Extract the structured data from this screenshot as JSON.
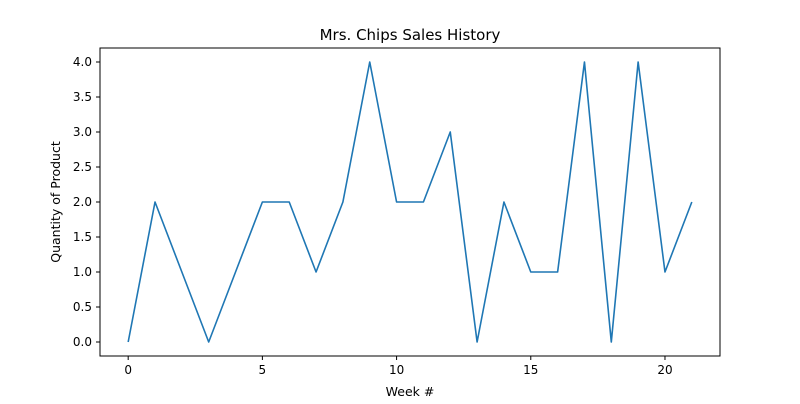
{
  "chart_data": {
    "type": "line",
    "title": "Mrs. Chips Sales History",
    "xlabel": "Week #",
    "ylabel": "Quantity of Product",
    "xlim": [
      -1.05,
      22.05
    ],
    "ylim": [
      -0.2,
      4.2
    ],
    "xticks": [
      0,
      5,
      10,
      15,
      20
    ],
    "yticks": [
      0.0,
      0.5,
      1.0,
      1.5,
      2.0,
      2.5,
      3.0,
      3.5,
      4.0
    ],
    "ytick_labels": [
      "0.0",
      "0.5",
      "1.0",
      "1.5",
      "2.0",
      "2.5",
      "3.0",
      "3.5",
      "4.0"
    ],
    "grid": false,
    "legend": "none",
    "series": [
      {
        "color": "#1f77b4",
        "x": [
          0,
          1,
          2,
          3,
          4,
          5,
          6,
          7,
          8,
          9,
          10,
          11,
          12,
          13,
          14,
          15,
          16,
          17,
          18,
          19,
          20,
          21
        ],
        "y": [
          0,
          2,
          1,
          0,
          1,
          2,
          2,
          1,
          2,
          4,
          2,
          2,
          3,
          0,
          2,
          1,
          1,
          4,
          0,
          4,
          1,
          2
        ]
      }
    ]
  }
}
